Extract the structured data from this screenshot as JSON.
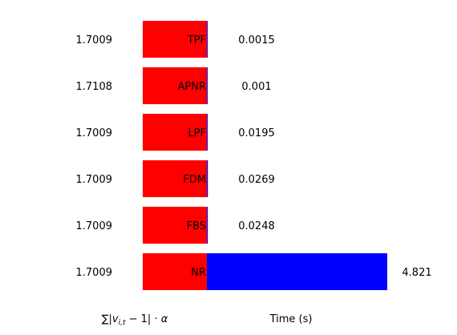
{
  "chart_data": {
    "type": "bar",
    "orientation": "horizontal",
    "categories": [
      "TPF",
      "APNR",
      "LPF",
      "FDM",
      "FBS",
      "NR"
    ],
    "left_values_label": "∑|v_{i,t} − 1| · α",
    "time_label": "Time (s)",
    "series": [
      {
        "values": [
          1.7009,
          1.7108,
          1.7009,
          1.7009,
          1.7009,
          1.7009
        ],
        "color": "#ff0000"
      },
      {
        "values": [
          0.0015,
          0.001,
          0.0195,
          0.0269,
          0.0248,
          4.821
        ],
        "color": "#0000ff"
      }
    ],
    "left_value_labels": [
      "1.7009",
      "1.7108",
      "1.7009",
      "1.7009",
      "1.7009",
      "1.7009"
    ],
    "time_value_labels": [
      "0.0015",
      "0.001",
      "0.0195",
      "0.0269",
      "0.0248",
      "4.821"
    ],
    "time_range": [
      0,
      4.821
    ],
    "grid": false,
    "legend": "none"
  }
}
